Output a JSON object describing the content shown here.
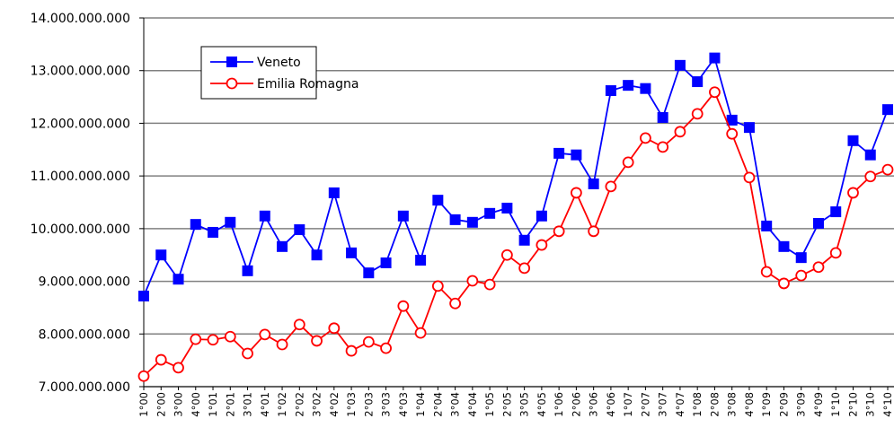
{
  "chart_data": {
    "type": "line",
    "categories": [
      "1°00",
      "2°00",
      "3°00",
      "4°00",
      "1°01",
      "2°01",
      "3°01",
      "4°01",
      "1°02",
      "2°02",
      "3°02",
      "4°02",
      "1°03",
      "2°03",
      "3°03",
      "4°03",
      "1°04",
      "2°04",
      "3°04",
      "4°04",
      "1°05",
      "2°05",
      "3°05",
      "4°05",
      "1°06",
      "2°06",
      "3°06",
      "4°06",
      "1°07",
      "2°07",
      "3°07",
      "4°07",
      "1°08",
      "2°08",
      "3°08",
      "4°08",
      "1°09",
      "2°09",
      "3°09",
      "4°09",
      "1°10",
      "2°10",
      "3°10",
      "4°10"
    ],
    "series": [
      {
        "name": "Veneto",
        "color": "#0000ff",
        "marker": "square",
        "values": [
          8720000000,
          9500000000,
          9040000000,
          10080000000,
          9930000000,
          10120000000,
          9200000000,
          10240000000,
          9660000000,
          9980000000,
          9500000000,
          10680000000,
          9540000000,
          9160000000,
          9350000000,
          10240000000,
          9400000000,
          10540000000,
          10170000000,
          10120000000,
          10290000000,
          10390000000,
          9780000000,
          10240000000,
          11430000000,
          11400000000,
          10850000000,
          12620000000,
          12720000000,
          12660000000,
          12110000000,
          13100000000,
          12790000000,
          13240000000,
          12060000000,
          11920000000,
          10050000000,
          9660000000,
          9450000000,
          10100000000,
          10320000000,
          11670000000,
          11400000000,
          12260000000
        ]
      },
      {
        "name": "Emilia Romagna",
        "color": "#ff0000",
        "marker": "circle",
        "values": [
          7200000000,
          7510000000,
          7360000000,
          7900000000,
          7890000000,
          7950000000,
          7630000000,
          7990000000,
          7800000000,
          8180000000,
          7870000000,
          8110000000,
          7680000000,
          7850000000,
          7730000000,
          8530000000,
          8020000000,
          8910000000,
          8580000000,
          9010000000,
          8940000000,
          9500000000,
          9250000000,
          9690000000,
          9950000000,
          10680000000,
          9950000000,
          10800000000,
          11260000000,
          11720000000,
          11550000000,
          11840000000,
          12180000000,
          12590000000,
          11800000000,
          10970000000,
          9180000000,
          8960000000,
          9110000000,
          9270000000,
          9540000000,
          10680000000,
          10990000000,
          11120000000
        ]
      }
    ],
    "ylim": [
      7000000000,
      14000000000
    ],
    "yticks": [
      {
        "value": 7000000000,
        "label": "7.000.000.000"
      },
      {
        "value": 8000000000,
        "label": "8.000.000.000"
      },
      {
        "value": 9000000000,
        "label": "9.000.000.000"
      },
      {
        "value": 10000000000,
        "label": "10.000.000.000"
      },
      {
        "value": 11000000000,
        "label": "11.000.000.000"
      },
      {
        "value": 12000000000,
        "label": "12.000.000.000"
      },
      {
        "value": 13000000000,
        "label": "13.000.000.000"
      },
      {
        "value": 14000000000,
        "label": "14.000.000.000"
      }
    ],
    "grid": true,
    "legend": "upper-left"
  }
}
